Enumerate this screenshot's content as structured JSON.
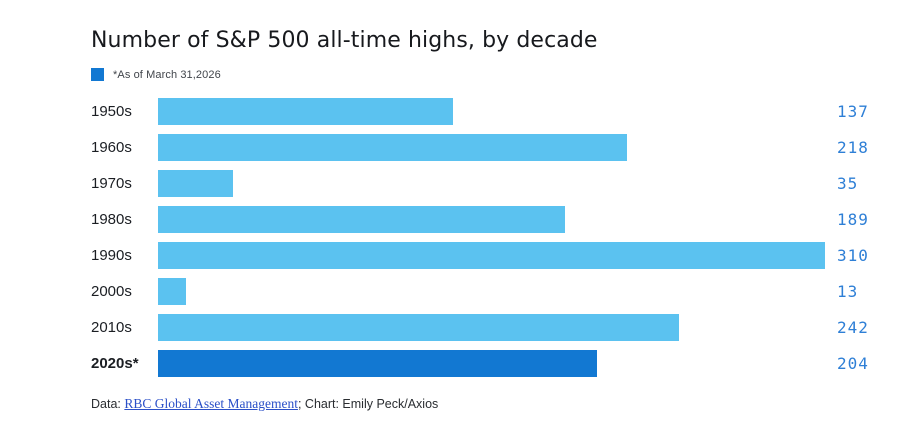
{
  "chart": {
    "title": "Number of S&P 500 all-time highs, by decade",
    "legend_note": "*As of March 31,2026",
    "footer": {
      "prefix": "Data: ",
      "link_text": "RBC Global Asset Management",
      "suffix": "; Chart: Emily Peck/Axios"
    }
  },
  "chart_data": {
    "type": "bar",
    "orientation": "horizontal",
    "title": "Number of S&P 500 all-time highs, by decade",
    "categories": [
      "1950s",
      "1960s",
      "1970s",
      "1980s",
      "1990s",
      "2000s",
      "2010s",
      "2020s*"
    ],
    "values": [
      137,
      218,
      35,
      189,
      310,
      13,
      242,
      204
    ],
    "rows": [
      {
        "label": "1950s",
        "value": 137,
        "highlight": false
      },
      {
        "label": "1960s",
        "value": 218,
        "highlight": false
      },
      {
        "label": "1970s",
        "value": 35,
        "highlight": false
      },
      {
        "label": "1980s",
        "value": 189,
        "highlight": false
      },
      {
        "label": "1990s",
        "value": 310,
        "highlight": false
      },
      {
        "label": "2000s",
        "value": 13,
        "highlight": false
      },
      {
        "label": "2010s",
        "value": 242,
        "highlight": false
      },
      {
        "label": "2020s*",
        "value": 204,
        "highlight": true
      }
    ],
    "max_value": 310,
    "xlim": [
      0,
      310
    ],
    "value_labels_shown": true,
    "grid": false,
    "legend_position": "top-left",
    "legend": [
      {
        "label": "*As of March 31,2026",
        "color": "#1278D2"
      }
    ],
    "colors": {
      "bar": "#5BC2F0",
      "highlight": "#1278D2",
      "value_text": "#2E7FD6",
      "title_text": "#17191d",
      "link_text": "#2b50c8"
    }
  }
}
